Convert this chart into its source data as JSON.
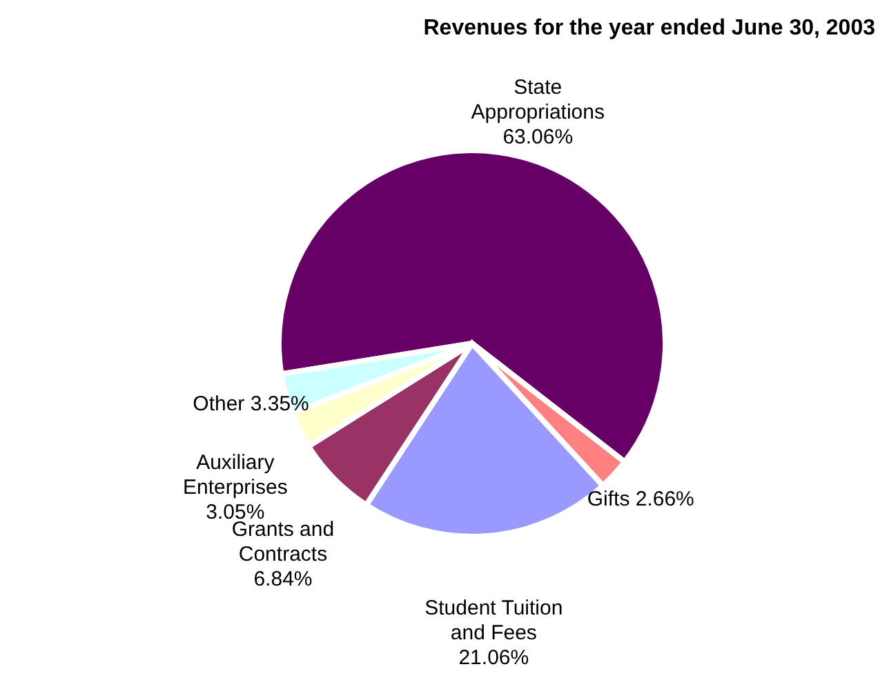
{
  "chart_data": {
    "type": "pie",
    "title": "Revenues for the year ended June 30, 2003",
    "categories": [
      "State Appropriations",
      "Gifts",
      "Student Tuition and Fees",
      "Grants and Contracts",
      "Auxiliary Enterprises",
      "Other"
    ],
    "values": [
      63.06,
      2.66,
      21.06,
      6.84,
      3.05,
      3.35
    ],
    "colors": [
      "#660066",
      "#ff8080",
      "#9999ff",
      "#993366",
      "#ffffcc",
      "#ccffff"
    ],
    "value_labels": [
      "63.06%",
      "2.66%",
      "21.06%",
      "6.84%",
      "3.05%",
      "3.35%"
    ]
  }
}
